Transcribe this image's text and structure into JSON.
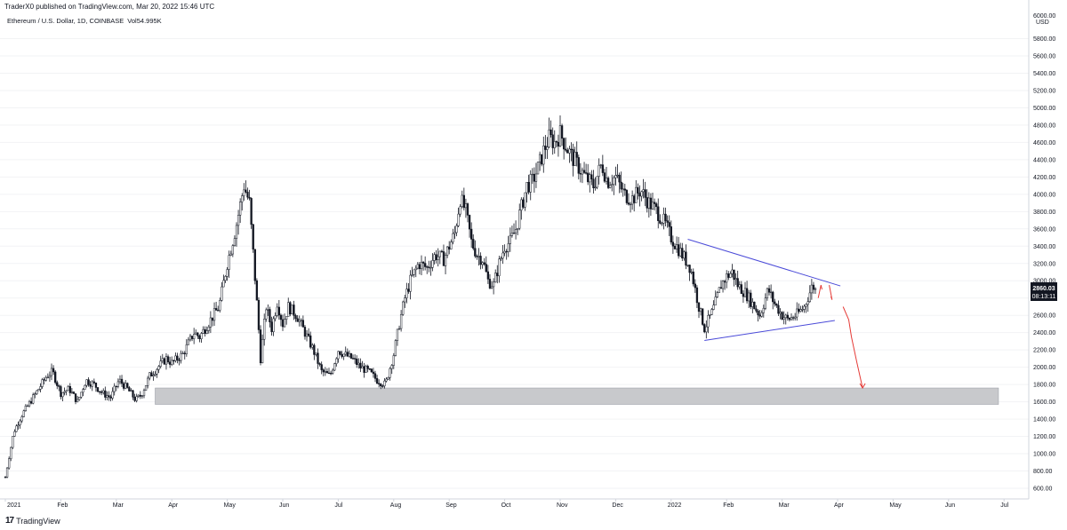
{
  "publish_line": "TraderX0 published on TradingView.com, Mar 20, 2022 15:46 UTC",
  "symbol": {
    "name": "Ethereum / U.S. Dollar, 1D, COINBASE",
    "volume_label": "Vol",
    "volume_value": "54.995K"
  },
  "brand": {
    "logo_mark": "17",
    "name": "TradingView"
  },
  "price_axis": {
    "currency": "USD",
    "top_tick": "6000.00"
  },
  "last_price": {
    "value": "2860.03",
    "countdown": "08:13:11"
  },
  "colors": {
    "up": "#131722",
    "down": "#131722",
    "trendline": "#4a4ad8",
    "projection": "#e53935",
    "support_zone": "#c8c9cc",
    "price_tag_bg": "#131722"
  },
  "chart_data": {
    "type": "candlestick",
    "ylim": [
      400,
      6100
    ],
    "y_ticks": [
      600,
      800,
      1000,
      1200,
      1400,
      1600,
      1800,
      2000,
      2200,
      2400,
      2600,
      2800,
      3000,
      3200,
      3400,
      3600,
      3800,
      4000,
      4200,
      4400,
      4600,
      4800,
      5000,
      5200,
      5400,
      5600,
      5800
    ],
    "x_labels": [
      "2021",
      "Feb",
      "Mar",
      "Apr",
      "May",
      "Jun",
      "Jul",
      "Aug",
      "Sep",
      "Oct",
      "Nov",
      "Dec",
      "2022",
      "Feb",
      "Mar",
      "Apr",
      "May",
      "Jun",
      "Jul"
    ],
    "x_label_months_index": [
      0,
      1,
      2,
      3,
      4,
      5,
      6,
      7,
      8,
      9,
      10,
      11,
      12,
      13,
      14,
      15,
      16,
      17,
      18
    ],
    "price_path": [
      [
        0,
        730
      ],
      [
        0.15,
        1250
      ],
      [
        0.3,
        1450
      ],
      [
        0.5,
        1650
      ],
      [
        0.75,
        1900
      ],
      [
        0.85,
        1950
      ],
      [
        1,
        1700
      ],
      [
        1.15,
        1750
      ],
      [
        1.3,
        1600
      ],
      [
        1.45,
        1850
      ],
      [
        1.6,
        1800
      ],
      [
        1.75,
        1700
      ],
      [
        1.9,
        1650
      ],
      [
        2.05,
        1850
      ],
      [
        2.2,
        1750
      ],
      [
        2.35,
        1620
      ],
      [
        2.45,
        1680
      ],
      [
        2.6,
        1900
      ],
      [
        2.75,
        2000
      ],
      [
        2.9,
        2100
      ],
      [
        3,
        2050
      ],
      [
        3.2,
        2150
      ],
      [
        3.4,
        2400
      ],
      [
        3.5,
        2350
      ],
      [
        3.7,
        2550
      ],
      [
        3.85,
        2700
      ],
      [
        4,
        3200
      ],
      [
        4.15,
        3600
      ],
      [
        4.3,
        4100
      ],
      [
        4.4,
        3900
      ],
      [
        4.55,
        2600
      ],
      [
        4.6,
        2100
      ],
      [
        4.7,
        2700
      ],
      [
        4.8,
        2450
      ],
      [
        4.9,
        2750
      ],
      [
        5,
        2500
      ],
      [
        5.1,
        2700
      ],
      [
        5.25,
        2600
      ],
      [
        5.4,
        2400
      ],
      [
        5.55,
        2200
      ],
      [
        5.7,
        1950
      ],
      [
        5.85,
        1900
      ],
      [
        6,
        2200
      ],
      [
        6.1,
        2150
      ],
      [
        6.25,
        2100
      ],
      [
        6.4,
        2000
      ],
      [
        6.55,
        1950
      ],
      [
        6.7,
        1850
      ],
      [
        6.85,
        1800
      ],
      [
        7,
        2150
      ],
      [
        7.1,
        2500
      ],
      [
        7.2,
        2800
      ],
      [
        7.3,
        3000
      ],
      [
        7.45,
        3200
      ],
      [
        7.6,
        3150
      ],
      [
        7.75,
        3300
      ],
      [
        7.9,
        3250
      ],
      [
        8,
        3400
      ],
      [
        8.1,
        3550
      ],
      [
        8.2,
        3950
      ],
      [
        8.3,
        3800
      ],
      [
        8.4,
        3450
      ],
      [
        8.5,
        3300
      ],
      [
        8.6,
        3250
      ],
      [
        8.7,
        3000
      ],
      [
        8.8,
        2950
      ],
      [
        8.9,
        3200
      ],
      [
        9,
        3400
      ],
      [
        9.1,
        3450
      ],
      [
        9.2,
        3600
      ],
      [
        9.3,
        3850
      ],
      [
        9.4,
        4100
      ],
      [
        9.5,
        4150
      ],
      [
        9.6,
        4300
      ],
      [
        9.7,
        4500
      ],
      [
        9.8,
        4650
      ],
      [
        9.9,
        4600
      ],
      [
        10,
        4700
      ],
      [
        10.15,
        4500
      ],
      [
        10.3,
        4350
      ],
      [
        10.45,
        4200
      ],
      [
        10.6,
        4100
      ],
      [
        10.75,
        4350
      ],
      [
        10.85,
        4150
      ],
      [
        11,
        4200
      ],
      [
        11.15,
        4000
      ],
      [
        11.3,
        3950
      ],
      [
        11.45,
        4050
      ],
      [
        11.6,
        3900
      ],
      [
        11.75,
        3800
      ],
      [
        11.9,
        3650
      ],
      [
        12,
        3500
      ],
      [
        12.1,
        3400
      ],
      [
        12.2,
        3300
      ],
      [
        12.35,
        3150
      ],
      [
        12.5,
        2700
      ],
      [
        12.6,
        2450
      ],
      [
        12.75,
        2650
      ],
      [
        12.9,
        2950
      ],
      [
        13,
        3050
      ],
      [
        13.1,
        3100
      ],
      [
        13.2,
        2950
      ],
      [
        13.35,
        2850
      ],
      [
        13.5,
        2700
      ],
      [
        13.6,
        2600
      ],
      [
        13.75,
        2900
      ],
      [
        13.85,
        2750
      ],
      [
        14,
        2600
      ],
      [
        14.1,
        2550
      ],
      [
        14.25,
        2600
      ],
      [
        14.4,
        2700
      ],
      [
        14.55,
        2950
      ],
      [
        14.63,
        2860
      ]
    ],
    "trendlines": [
      {
        "from": [
          12.3,
          3480
        ],
        "to": [
          15.05,
          2940
        ]
      },
      {
        "from": [
          12.6,
          2310
        ],
        "to": [
          14.95,
          2540
        ]
      }
    ],
    "support_zone": {
      "x0": 2.7,
      "x1": 17.9,
      "y0": 1570,
      "y1": 1760
    },
    "projection_path": [
      [
        14.65,
        2800
      ],
      [
        14.7,
        2950
      ],
      [
        14.72,
        2900
      ],
      [
        14.85,
        2950
      ],
      [
        14.9,
        2780
      ],
      [
        14.88,
        2820
      ],
      [
        15.1,
        2700
      ],
      [
        15.2,
        2550
      ],
      [
        15.25,
        2350
      ],
      [
        15.35,
        2050
      ],
      [
        15.45,
        1760
      ]
    ]
  }
}
